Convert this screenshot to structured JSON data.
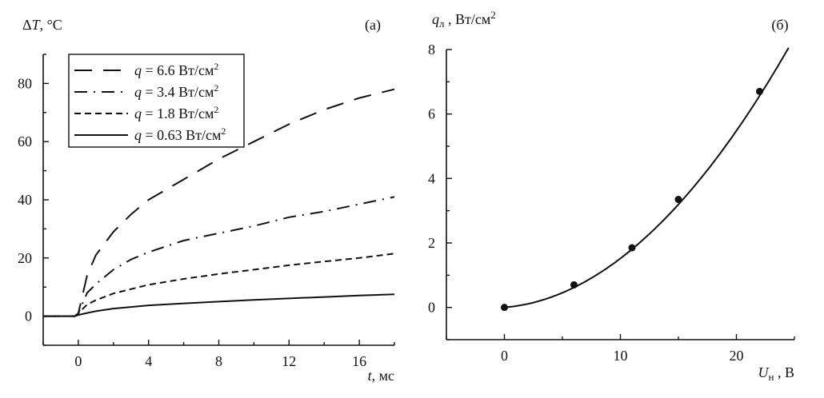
{
  "chart_data": [
    {
      "type": "line",
      "panel_label": "(a)",
      "ylabel": "ΔT, °C",
      "ylabel_parts": {
        "sym": "ΔT",
        "rest": ", °C"
      },
      "xlabel_parts": {
        "sym": "t",
        "rest": ", мс"
      },
      "xlim": [
        -2,
        18
      ],
      "ylim": [
        -10,
        90
      ],
      "xticks": [
        0,
        4,
        8,
        12,
        16
      ],
      "xminor": 2,
      "yticks": [
        0,
        20,
        40,
        60,
        80
      ],
      "yminor": 10,
      "legend_position": "top-left",
      "series": [
        {
          "name": "q = 6.6 Вт/см²",
          "label_q": "q",
          "label_rest": " = 6.6 Вт/см",
          "sup": "2",
          "dash": "22 14",
          "x": [
            -2,
            -0.2,
            0,
            0.5,
            1,
            2,
            3,
            4,
            6,
            8,
            10,
            12,
            14,
            16,
            18
          ],
          "y": [
            0,
            0,
            1,
            14,
            21,
            29,
            35,
            40,
            47,
            54,
            60,
            66,
            71,
            75,
            78
          ]
        },
        {
          "name": "q = 3.4 Вт/см²",
          "label_q": "q",
          "label_rest": " = 3.4 Вт/см",
          "sup": "2",
          "dash": "16 8 2 8",
          "x": [
            -2,
            -0.2,
            0,
            0.5,
            1,
            2,
            3,
            4,
            6,
            8,
            10,
            12,
            14,
            16,
            18
          ],
          "y": [
            0,
            0,
            1,
            8,
            11,
            16,
            19.5,
            22,
            26,
            28.5,
            31,
            34,
            36,
            38.5,
            41
          ]
        },
        {
          "name": "q = 1.8 Вт/см²",
          "label_q": "q",
          "label_rest": " = 1.8 Вт/см",
          "sup": "2",
          "dash": "8 5",
          "x": [
            -2,
            -0.2,
            0,
            0.5,
            1,
            2,
            4,
            6,
            8,
            10,
            12,
            14,
            16,
            18
          ],
          "y": [
            0,
            0,
            1,
            4,
            5.5,
            7.8,
            10.8,
            12.8,
            14.5,
            16,
            17.5,
            18.8,
            20,
            21.5
          ]
        },
        {
          "name": "q = 0.63 Вт/см²",
          "label_q": "q",
          "label_rest": " = 0.63 Вт/см",
          "sup": "2",
          "dash": "",
          "x": [
            -2,
            -0.2,
            0,
            0.5,
            1,
            2,
            4,
            6,
            8,
            10,
            12,
            14,
            16,
            18
          ],
          "y": [
            0,
            0,
            0.4,
            1.1,
            1.7,
            2.6,
            3.7,
            4.4,
            5.0,
            5.6,
            6.1,
            6.6,
            7.1,
            7.5
          ]
        }
      ]
    },
    {
      "type": "scatter",
      "panel_label": "(б)",
      "ylabel_parts": {
        "sym": "q",
        "sub": "л",
        "rest": " , Вт/см",
        "sup": "2"
      },
      "xlabel_parts": {
        "sym": "U",
        "sub": "н",
        "rest": " , В"
      },
      "xlim": [
        -5,
        25
      ],
      "ylim": [
        -1,
        8
      ],
      "xticks": [
        0,
        10,
        20
      ],
      "xminor": 5,
      "yticks": [
        0,
        2,
        4,
        6,
        8
      ],
      "yminor": 1,
      "points": {
        "x": [
          0,
          6,
          11,
          15,
          22
        ],
        "y": [
          0,
          0.7,
          1.85,
          3.35,
          6.7
        ]
      },
      "fit": {
        "kind": "quadratic",
        "a": 0.0122,
        "b": 0.03,
        "x_range": [
          0,
          24.5
        ]
      }
    }
  ]
}
